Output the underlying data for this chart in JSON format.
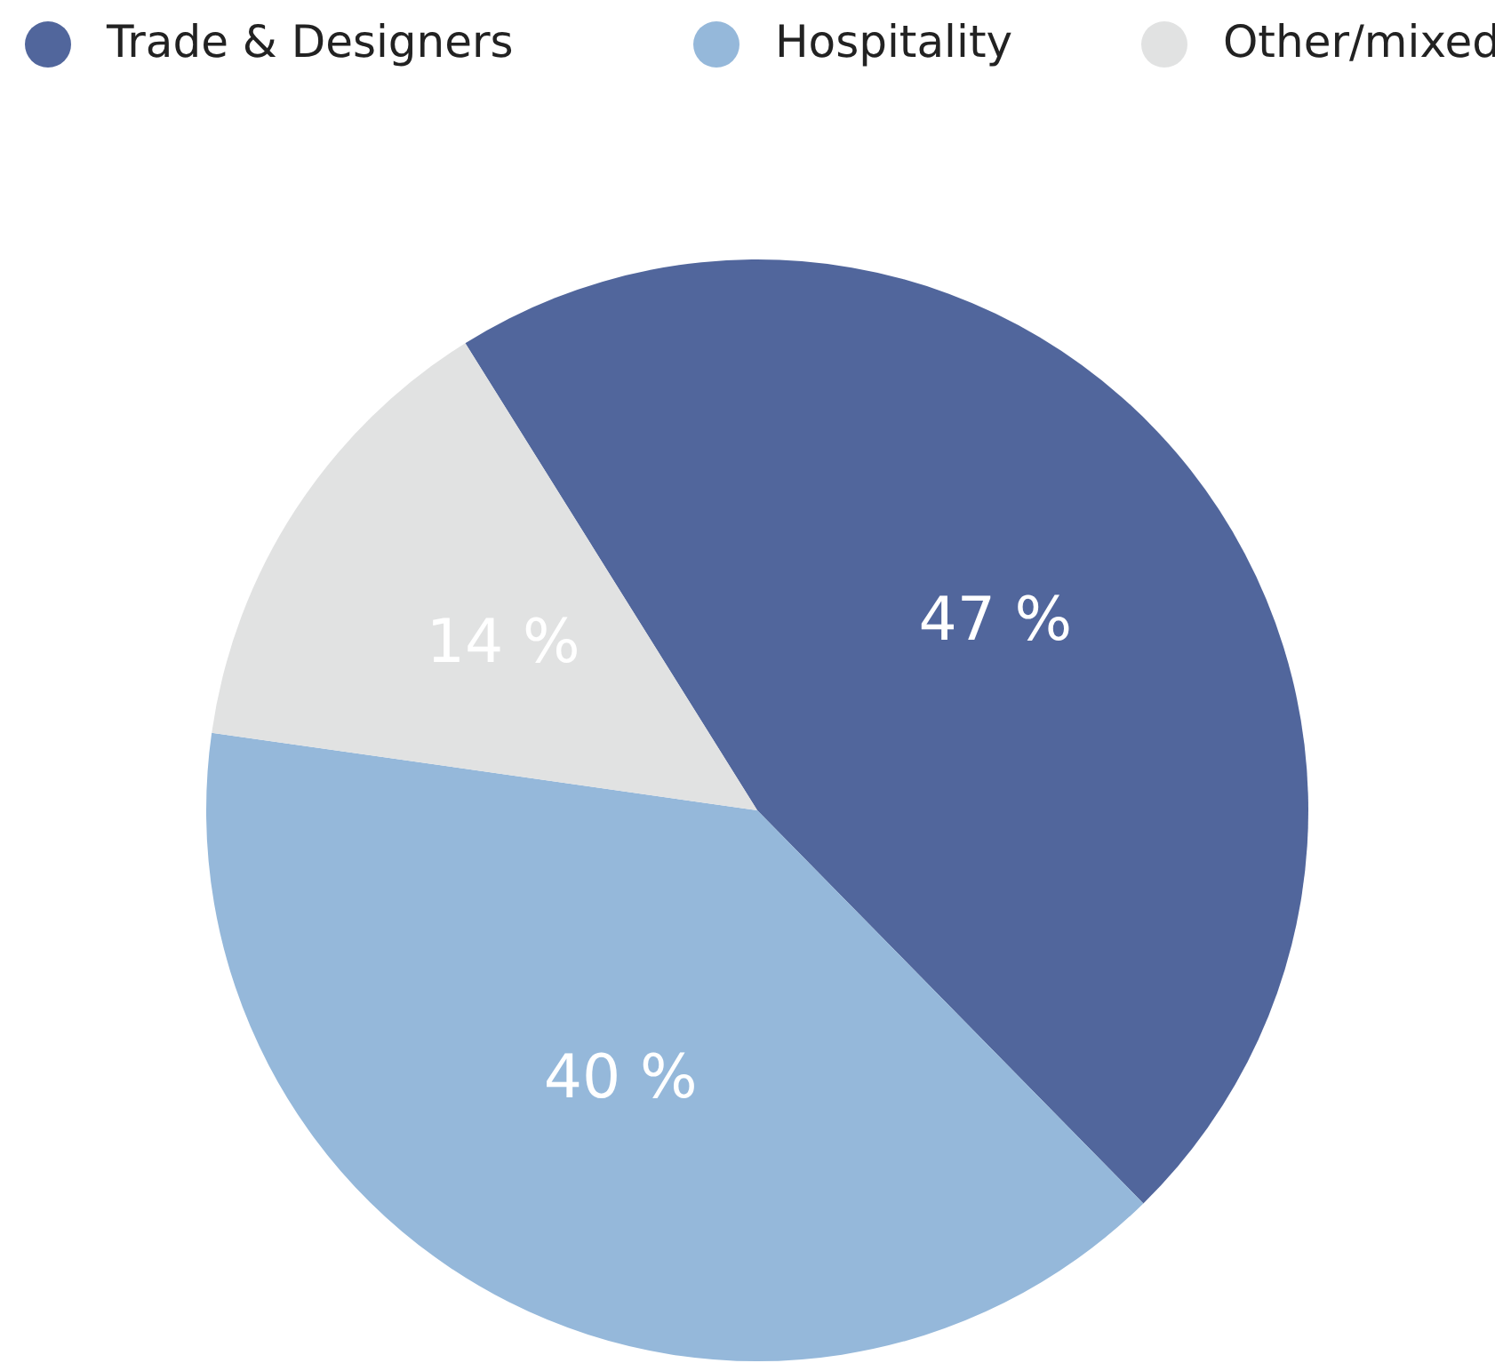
{
  "chart_data": {
    "type": "pie",
    "categories": [
      "Trade & Designers",
      "Hospitality",
      "Other/mixed"
    ],
    "values": [
      47,
      40,
      14
    ],
    "colors": [
      "#51669c",
      "#95b8da",
      "#e1e2e2"
    ],
    "value_labels": [
      "47 %",
      "40 %",
      "14 %"
    ],
    "legend": "top"
  }
}
